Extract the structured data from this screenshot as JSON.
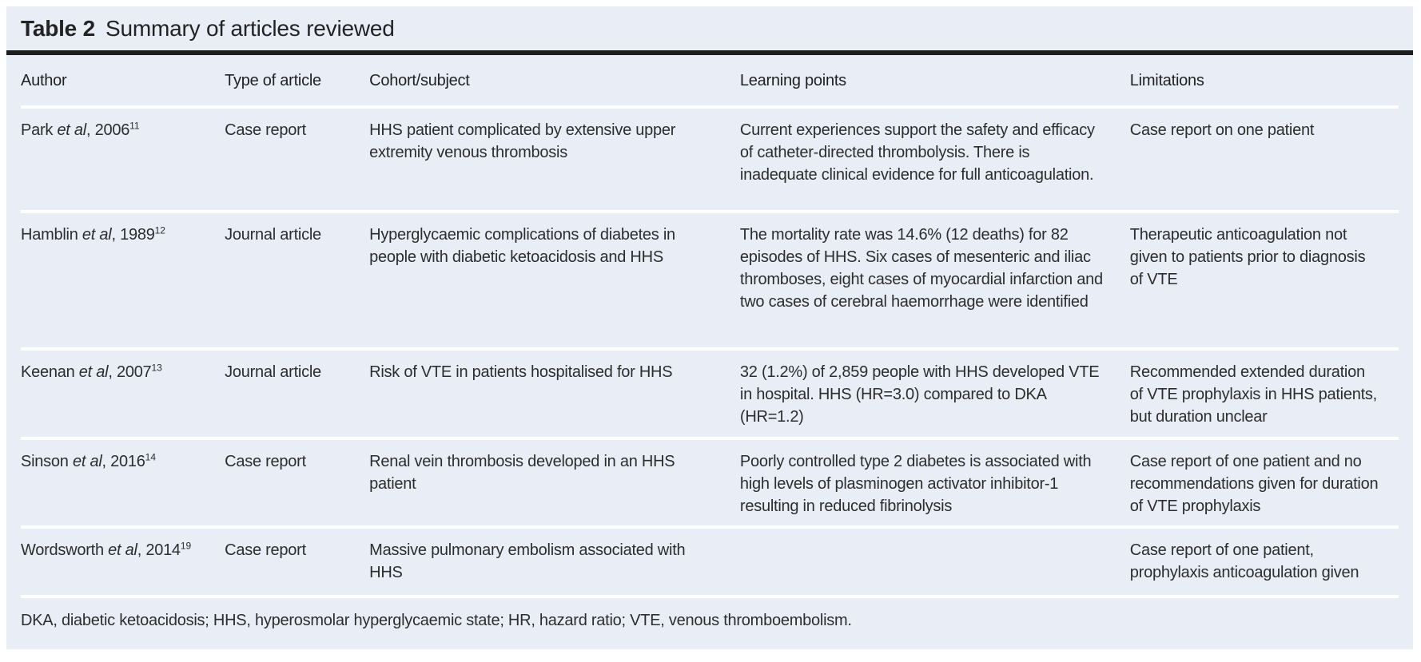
{
  "title": {
    "label": "Table 2",
    "text": "Summary of articles reviewed"
  },
  "columns": [
    "Author",
    "Type of article",
    "Cohort/subject",
    "Learning points",
    "Limitations"
  ],
  "rows": [
    {
      "author": {
        "name": "Park ",
        "etal": "et al",
        "rest": ", 2006",
        "ref": "11"
      },
      "type": "Case report",
      "cohort": "HHS patient complicated by extensive upper extremity venous thrombosis",
      "learning": "Current experiences support the safety and efficacy of catheter-directed thrombolysis. There is inadequate clinical evidence for full anticoagulation.",
      "limitations": "Case report on one patient"
    },
    {
      "author": {
        "name": "Hamblin ",
        "etal": "et al",
        "rest": ", 1989",
        "ref": "12"
      },
      "type": "Journal article",
      "cohort": "Hyperglycaemic complications of diabetes in people with diabetic ketoacidosis and HHS",
      "learning": "The mortality rate was 14.6% (12 deaths) for 82 episodes of HHS. Six cases of mesenteric and iliac thromboses, eight cases of myocardial infarction and two cases of cerebral haemorrhage were identified",
      "limitations": "Therapeutic anticoagulation not given to patients prior to diagnosis of VTE"
    },
    {
      "author": {
        "name": "Keenan ",
        "etal": "et al",
        "rest": ", 2007",
        "ref": "13"
      },
      "type": "Journal article",
      "cohort": "Risk of VTE in patients hospitalised for HHS",
      "learning": "32 (1.2%) of 2,859 people with HHS developed VTE in hospital. HHS (HR=3.0) compared to DKA (HR=1.2)",
      "limitations": "Recommended extended duration of VTE prophylaxis in HHS patients, but duration unclear"
    },
    {
      "author": {
        "name": "Sinson ",
        "etal": "et al",
        "rest": ", 2016",
        "ref": "14"
      },
      "type": "Case report",
      "cohort": "Renal vein thrombosis developed in an HHS patient",
      "learning": "Poorly controlled type 2 diabetes is associated with high levels of plasminogen activator inhibitor-1 resulting in reduced fibrinolysis",
      "limitations": "Case report of one patient and no recommendations given for duration of VTE prophylaxis"
    },
    {
      "author": {
        "name": "Wordsworth ",
        "etal": "et al",
        "rest": ", 2014",
        "ref": "19"
      },
      "type": "Case report",
      "cohort": "Massive pulmonary embolism associated with HHS",
      "learning": "",
      "limitations": "Case report of one patient, prophylaxis anticoagulation given"
    }
  ],
  "footnote": "DKA, diabetic ketoacidosis; HHS, hyperosmolar hyperglycaemic state; HR, hazard ratio; VTE, venous thromboembolism.",
  "colors": {
    "card_background": "#e8edf6",
    "title_rule": "#1e1e1e",
    "row_separator": "#ffffff",
    "text": "#2d2d2d"
  }
}
